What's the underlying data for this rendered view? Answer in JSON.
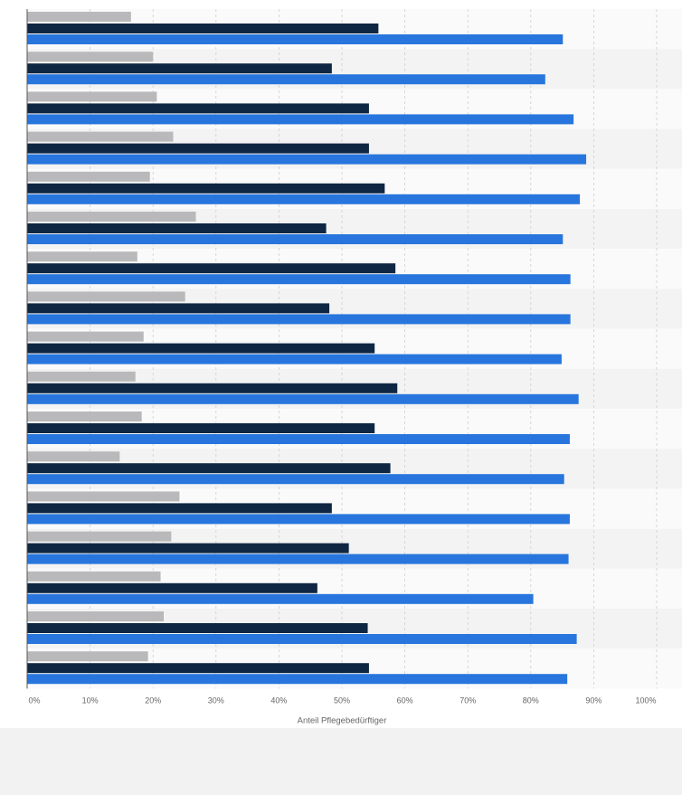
{
  "colors": {
    "series_gray": "#b9b9bb",
    "series_dark": "#0f2742",
    "series_blue": "#2876dd",
    "grid": "#cfcfcf",
    "band_a": "#f3f3f3",
    "band_b": "#fafafa"
  },
  "chart_data": {
    "type": "bar",
    "orientation": "horizontal",
    "xlabel": "Anteil Pflegebedürftiger",
    "xlim": [
      0,
      100
    ],
    "xticks": [
      "0%",
      "10%",
      "20%",
      "30%",
      "40%",
      "50%",
      "60%",
      "70%",
      "80%",
      "90%",
      "100%"
    ],
    "grid": true,
    "legend": "none",
    "categories": [
      "",
      "",
      "",
      "",
      "",
      "",
      "",
      "",
      "",
      "",
      "",
      "",
      "",
      "",
      "",
      "",
      ""
    ],
    "series": [
      {
        "values": [
          16.5,
          20.0,
          20.6,
          23.2,
          19.5,
          26.8,
          17.5,
          25.1,
          18.5,
          17.2,
          18.2,
          14.7,
          24.2,
          22.9,
          21.2,
          21.7,
          19.2
        ]
      },
      {
        "values": [
          55.8,
          48.4,
          54.3,
          54.3,
          56.8,
          47.5,
          58.5,
          48.0,
          55.2,
          58.8,
          55.2,
          57.7,
          48.4,
          51.1,
          46.1,
          54.1,
          54.3
        ]
      },
      {
        "values": [
          85.1,
          82.3,
          86.8,
          88.8,
          87.8,
          85.1,
          86.3,
          86.3,
          84.9,
          87.6,
          86.2,
          85.3,
          86.2,
          86.0,
          80.4,
          87.3,
          85.8
        ]
      }
    ]
  }
}
